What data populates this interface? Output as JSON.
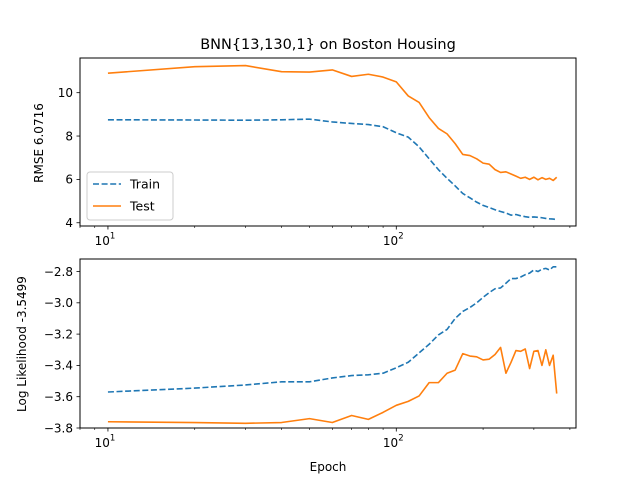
{
  "chart_data": [
    {
      "type": "line",
      "title": "BNN{13,130,1} on Boston Housing",
      "xlabel": "",
      "ylabel": "RMSE 6.0716",
      "x_scale": "log",
      "xlim": [
        8,
        420
      ],
      "ylim": [
        3.85,
        11.6
      ],
      "x_ticks": [
        {
          "value": 10,
          "base": "10",
          "exp": "1"
        },
        {
          "value": 100,
          "base": "10",
          "exp": "2"
        }
      ],
      "y_ticks": [
        4,
        6,
        8,
        10
      ],
      "grid": false,
      "legend": {
        "position": "lower-left"
      },
      "colors": {
        "Train": "#1f77b4",
        "Test": "#ff7f0e"
      },
      "series": [
        {
          "name": "Train",
          "style": "dashed",
          "x": [
            10,
            20,
            30,
            40,
            50,
            60,
            70,
            80,
            90,
            100,
            110,
            120,
            130,
            140,
            150,
            160,
            170,
            180,
            190,
            200,
            210,
            220,
            230,
            240,
            250,
            260,
            270,
            280,
            290,
            300,
            310,
            320,
            330,
            340,
            350,
            360
          ],
          "y": [
            8.75,
            8.74,
            8.73,
            8.75,
            8.78,
            8.65,
            8.58,
            8.53,
            8.43,
            8.15,
            7.95,
            7.5,
            6.95,
            6.45,
            6.05,
            5.7,
            5.35,
            5.15,
            4.95,
            4.8,
            4.7,
            4.6,
            4.52,
            4.45,
            4.35,
            4.38,
            4.32,
            4.28,
            4.25,
            4.27,
            4.25,
            4.23,
            4.2,
            4.18,
            4.17,
            4.15
          ]
        },
        {
          "name": "Test",
          "style": "solid",
          "x": [
            10,
            20,
            30,
            40,
            50,
            60,
            70,
            80,
            90,
            100,
            110,
            120,
            130,
            140,
            150,
            160,
            170,
            180,
            190,
            200,
            210,
            220,
            230,
            240,
            250,
            260,
            270,
            280,
            290,
            300,
            310,
            320,
            330,
            340,
            350,
            360
          ],
          "y": [
            10.9,
            11.2,
            11.25,
            10.97,
            10.95,
            11.05,
            10.75,
            10.85,
            10.72,
            10.5,
            9.85,
            9.55,
            8.85,
            8.35,
            8.1,
            7.65,
            7.15,
            7.1,
            6.95,
            6.75,
            6.7,
            6.45,
            6.32,
            6.35,
            6.25,
            6.15,
            6.05,
            6.1,
            6.0,
            6.1,
            5.98,
            6.08,
            6.0,
            6.05,
            5.95,
            6.1
          ]
        }
      ]
    },
    {
      "type": "line",
      "title": "",
      "xlabel": "Epoch",
      "ylabel": "Log Likelihood -3.5499",
      "x_scale": "log",
      "xlim": [
        8,
        420
      ],
      "ylim": [
        -3.8,
        -2.72
      ],
      "x_ticks": [
        {
          "value": 10,
          "base": "10",
          "exp": "1"
        },
        {
          "value": 100,
          "base": "10",
          "exp": "2"
        }
      ],
      "y_ticks": [
        -3.8,
        -3.6,
        -3.4,
        -3.2,
        -3.0,
        -2.8
      ],
      "y_tick_labels": [
        "−3.8",
        "−3.6",
        "−3.4",
        "−3.2",
        "−3.0",
        "−2.8"
      ],
      "grid": false,
      "colors": {
        "Train": "#1f77b4",
        "Test": "#ff7f0e"
      },
      "series": [
        {
          "style": "dashed",
          "x": [
            10,
            20,
            30,
            40,
            50,
            60,
            70,
            80,
            90,
            100,
            110,
            120,
            130,
            140,
            150,
            160,
            170,
            180,
            190,
            200,
            210,
            220,
            230,
            240,
            250,
            260,
            270,
            280,
            290,
            300,
            310,
            320,
            330,
            340,
            350,
            360
          ],
          "y": [
            -3.57,
            -3.545,
            -3.525,
            -3.505,
            -3.505,
            -3.48,
            -3.465,
            -3.46,
            -3.45,
            -3.415,
            -3.38,
            -3.32,
            -3.265,
            -3.205,
            -3.17,
            -3.1,
            -3.055,
            -3.03,
            -3.0,
            -2.965,
            -2.935,
            -2.91,
            -2.905,
            -2.875,
            -2.845,
            -2.845,
            -2.835,
            -2.82,
            -2.81,
            -2.79,
            -2.8,
            -2.785,
            -2.78,
            -2.79,
            -2.77,
            -2.77
          ]
        },
        {
          "style": "solid",
          "x": [
            10,
            20,
            30,
            40,
            50,
            60,
            70,
            80,
            90,
            100,
            110,
            120,
            130,
            140,
            150,
            160,
            170,
            180,
            190,
            200,
            210,
            220,
            230,
            240,
            250,
            260,
            270,
            280,
            290,
            300,
            310,
            320,
            330,
            340,
            350,
            360
          ],
          "y": [
            -3.76,
            -3.765,
            -3.77,
            -3.765,
            -3.74,
            -3.765,
            -3.72,
            -3.745,
            -3.7,
            -3.655,
            -3.63,
            -3.595,
            -3.51,
            -3.51,
            -3.45,
            -3.43,
            -3.325,
            -3.34,
            -3.345,
            -3.365,
            -3.36,
            -3.33,
            -3.285,
            -3.45,
            -3.38,
            -3.305,
            -3.31,
            -3.295,
            -3.42,
            -3.31,
            -3.305,
            -3.4,
            -3.3,
            -3.4,
            -3.335,
            -3.58
          ]
        }
      ]
    }
  ]
}
